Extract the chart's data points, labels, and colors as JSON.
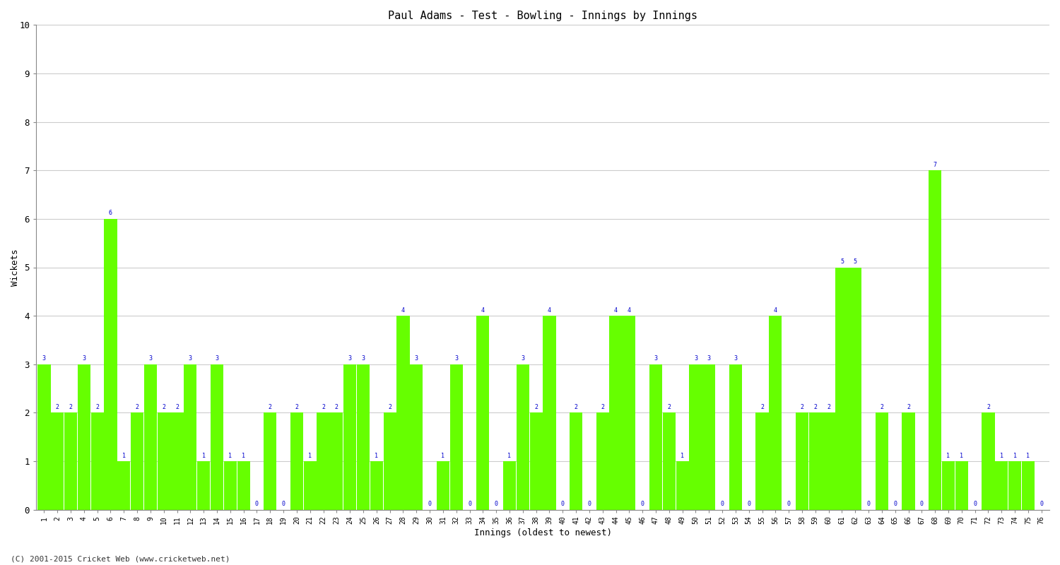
{
  "title": "Paul Adams - Test - Bowling - Innings by Innings",
  "xlabel": "Innings (oldest to newest)",
  "ylabel": "Wickets",
  "background_color": "#ffffff",
  "bar_color": "#66ff00",
  "label_color": "#0000cc",
  "footer": "(C) 2001-2015 Cricket Web (www.cricketweb.net)",
  "ylim": [
    0,
    10
  ],
  "yticks": [
    0,
    1,
    2,
    3,
    4,
    5,
    6,
    7,
    8,
    9,
    10
  ],
  "categories": [
    "1",
    "2",
    "3",
    "4",
    "5",
    "6",
    "7",
    "8",
    "9",
    "10",
    "11",
    "12",
    "13",
    "14",
    "15",
    "16",
    "17",
    "18",
    "19",
    "20",
    "21",
    "22",
    "23",
    "24",
    "25",
    "26",
    "27",
    "28",
    "29",
    "30",
    "31",
    "32",
    "33",
    "34",
    "35",
    "36",
    "37",
    "38",
    "39",
    "40",
    "41",
    "42",
    "43",
    "44",
    "45",
    "46",
    "47",
    "48",
    "49",
    "50",
    "51",
    "52",
    "53",
    "54",
    "55",
    "56",
    "57",
    "58",
    "59",
    "60",
    "61",
    "62",
    "63",
    "64",
    "65",
    "66",
    "67",
    "68",
    "69",
    "70",
    "71",
    "72",
    "73",
    "74",
    "75",
    "76"
  ],
  "values": [
    3,
    2,
    2,
    3,
    2,
    6,
    1,
    2,
    3,
    2,
    2,
    3,
    1,
    3,
    1,
    1,
    0,
    2,
    0,
    2,
    1,
    2,
    2,
    3,
    3,
    1,
    2,
    4,
    3,
    0,
    1,
    3,
    0,
    4,
    0,
    1,
    3,
    2,
    4,
    0,
    2,
    0,
    2,
    4,
    4,
    0,
    3,
    2,
    1,
    3,
    3,
    0,
    3,
    0,
    2,
    4,
    0,
    2,
    2,
    2,
    5,
    5,
    0,
    2,
    0,
    2,
    0,
    7,
    1,
    1,
    0,
    2,
    1,
    1,
    1,
    0
  ]
}
